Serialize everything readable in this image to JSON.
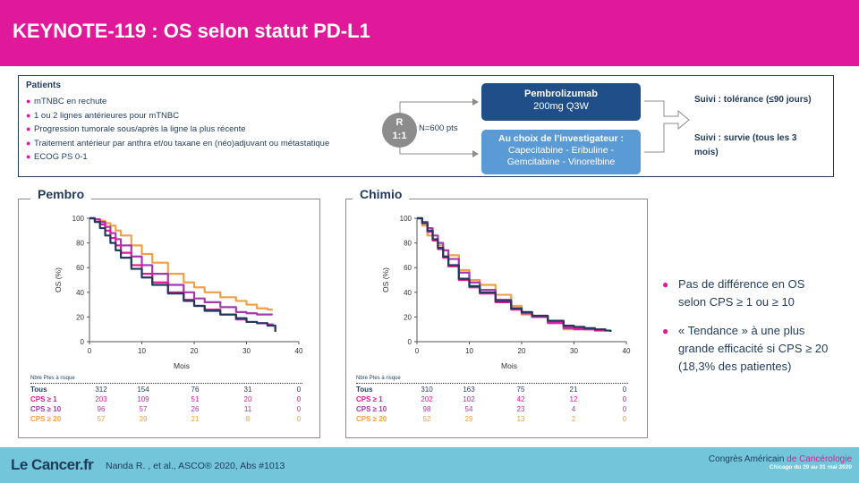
{
  "header": {
    "title": "KEYNOTE-119 : OS selon statut PD-L1",
    "color": "#e0199a"
  },
  "patients": {
    "title": "Patients",
    "items": [
      "mTNBC  en  rechute",
      "1 ou 2 lignes antérieures pour mTNBC",
      "Progression tumorale sous/après la ligne la plus récente",
      "Traitement antérieur par anthra et/ou taxane en (néo)adjuvant ou métastatique",
      "ECOG PS 0-1"
    ]
  },
  "design": {
    "randomization_line1": "R",
    "randomization_line2": "1:1",
    "n_patients": "N=600 pts",
    "arm1_title": "Pembrolizumab",
    "arm1_detail": "200mg Q3W",
    "arm2_title": "Au choix de l’investigateur :",
    "arm2_line1": "Capecitabine - Eribuline -",
    "arm2_line2": "Gemcitabine - Vinorelbine",
    "suivi1": "Suivi : tolérance (≤90 jours)",
    "suivi2": "Suivi : survie (tous les 3 mois)",
    "arm1_color": "#1f4e88",
    "arm2_color": "#5b9bd5"
  },
  "chart_data": [
    {
      "type": "line",
      "title": "Pembro",
      "xlabel": "Mois",
      "ylabel": "OS (%)",
      "xlim": [
        0,
        40
      ],
      "ylim": [
        0,
        100
      ],
      "xticks": [
        "0",
        "10",
        "20",
        "30",
        "40"
      ],
      "yticks": [
        "0",
        "20",
        "40",
        "60",
        "80",
        "100"
      ],
      "series": [
        {
          "name": "Tous",
          "color": "#1f3a5c",
          "x": [
            0,
            1,
            2,
            3,
            4,
            5,
            6,
            8,
            10,
            12,
            15,
            18,
            20,
            22,
            25,
            28,
            30,
            32,
            34,
            35,
            35.5
          ],
          "y": [
            100,
            97,
            92,
            86,
            80,
            74,
            68,
            59,
            52,
            46,
            39,
            33,
            29,
            25,
            22,
            19,
            16,
            15,
            13,
            13,
            8
          ]
        },
        {
          "name": "CPS ≥ 1",
          "color": "#e0199a",
          "x": [
            0,
            1,
            2,
            3,
            4,
            5,
            6,
            8,
            10,
            12,
            15,
            18,
            20,
            22,
            25,
            28,
            30,
            32,
            34,
            35,
            35.5
          ],
          "y": [
            100,
            99,
            95,
            90,
            84,
            78,
            72,
            62,
            55,
            48,
            40,
            34,
            29,
            26,
            22,
            18,
            16,
            15,
            14,
            13,
            9
          ]
        },
        {
          "name": "CPS ≥ 10",
          "color": "#a33ab0",
          "x": [
            0,
            1,
            2,
            3,
            4,
            5,
            6,
            8,
            10,
            12,
            15,
            18,
            20,
            22,
            25,
            28,
            30,
            32,
            34,
            35
          ],
          "y": [
            100,
            99,
            97,
            93,
            88,
            83,
            78,
            69,
            62,
            55,
            46,
            40,
            35,
            32,
            28,
            24,
            23,
            22,
            22,
            22
          ]
        },
        {
          "name": "CPS ≥ 20",
          "color": "#f0a046",
          "x": [
            0,
            1,
            2,
            3,
            4,
            5,
            6,
            8,
            10,
            12,
            15,
            18,
            20,
            22,
            25,
            28,
            30,
            32,
            34,
            35
          ],
          "y": [
            100,
            99,
            98,
            96,
            94,
            90,
            86,
            78,
            71,
            64,
            55,
            48,
            44,
            40,
            36,
            33,
            30,
            27,
            26,
            26
          ]
        }
      ]
    },
    {
      "type": "line",
      "title": "Chimio",
      "xlabel": "Mois",
      "ylabel": "OS (%)",
      "xlim": [
        0,
        40
      ],
      "ylim": [
        0,
        100
      ],
      "xticks": [
        "0",
        "10",
        "20",
        "30",
        "40"
      ],
      "yticks": [
        "0",
        "20",
        "40",
        "60",
        "80",
        "100"
      ],
      "series": [
        {
          "name": "Tous",
          "color": "#1f3a5c",
          "x": [
            0,
            1,
            2,
            3,
            4,
            5,
            6,
            8,
            10,
            12,
            15,
            18,
            20,
            22,
            25,
            28,
            30,
            32,
            34,
            36,
            37
          ],
          "y": [
            100,
            96,
            90,
            83,
            76,
            69,
            62,
            51,
            45,
            40,
            33,
            27,
            24,
            21,
            17,
            13,
            12,
            11,
            10,
            9,
            8
          ]
        },
        {
          "name": "CPS ≥ 1",
          "color": "#e0199a",
          "x": [
            0,
            1,
            2,
            3,
            4,
            5,
            6,
            8,
            10,
            12,
            15,
            18,
            20,
            22,
            25,
            28,
            30,
            32,
            34,
            36
          ],
          "y": [
            100,
            96,
            89,
            82,
            75,
            68,
            61,
            50,
            44,
            39,
            32,
            26,
            23,
            20,
            16,
            12,
            11,
            10,
            9,
            9
          ]
        },
        {
          "name": "CPS ≥ 10",
          "color": "#a33ab0",
          "x": [
            0,
            1,
            2,
            3,
            4,
            5,
            6,
            8,
            10,
            12,
            15,
            18,
            20,
            22,
            25,
            28,
            30,
            32,
            34
          ],
          "y": [
            100,
            97,
            92,
            86,
            80,
            74,
            67,
            56,
            48,
            42,
            34,
            27,
            23,
            20,
            15,
            11,
            10,
            10,
            10
          ]
        },
        {
          "name": "CPS ≥ 20",
          "color": "#f0a046",
          "x": [
            0,
            1,
            2,
            3,
            4,
            5,
            6,
            8,
            10,
            12,
            15,
            18,
            20,
            22,
            25,
            28,
            30,
            32,
            34
          ],
          "y": [
            100,
            94,
            86,
            82,
            78,
            74,
            70,
            58,
            50,
            46,
            38,
            29,
            22,
            20,
            17,
            10,
            10,
            10,
            10
          ]
        }
      ]
    }
  ],
  "risk_tables": [
    {
      "header": "Nbre Ptes à risque",
      "rows": [
        {
          "label": "Tous",
          "color": "#1f3a5c",
          "values": [
            "312",
            "154",
            "76",
            "31",
            "0"
          ]
        },
        {
          "label": "CPS ≥ 1",
          "color": "#e0199a",
          "values": [
            "203",
            "109",
            "51",
            "20",
            "0"
          ]
        },
        {
          "label": "CPS ≥ 10",
          "color": "#a33ab0",
          "values": [
            "96",
            "57",
            "26",
            "11",
            "0"
          ]
        },
        {
          "label": "CPS ≥ 20",
          "color": "#f0a046",
          "values": [
            "57",
            "39",
            "21",
            "8",
            "0"
          ]
        }
      ]
    },
    {
      "header": "Nbre Ptes à risque",
      "rows": [
        {
          "label": "Tous",
          "color": "#1f3a5c",
          "values": [
            "310",
            "163",
            "75",
            "21",
            "0"
          ]
        },
        {
          "label": "CPS ≥ 1",
          "color": "#e0199a",
          "values": [
            "202",
            "102",
            "42",
            "12",
            "0"
          ]
        },
        {
          "label": "CPS ≥ 10",
          "color": "#a33ab0",
          "values": [
            "98",
            "54",
            "23",
            "4",
            "0"
          ]
        },
        {
          "label": "CPS ≥ 20",
          "color": "#f0a046",
          "values": [
            "52",
            "29",
            "13",
            "2",
            "0"
          ]
        }
      ]
    }
  ],
  "conclusions": [
    "Pas de différence en OS selon CPS ≥ 1 ou ≥ 10",
    "« Tendance » à une plus grande efficacité si CPS ≥ 20 (18,3% des patientes)"
  ],
  "footer": {
    "logo_text": "Le Cancer.fr",
    "citation": "Nanda R. , et al., ASCO® 2020, Abs #1013",
    "congress_part1": "Congrès Américain ",
    "congress_part2": "de Cancérologie",
    "congress_dates": "Chicago du 29 au 31 mai 2020",
    "color": "#73c6d9"
  }
}
